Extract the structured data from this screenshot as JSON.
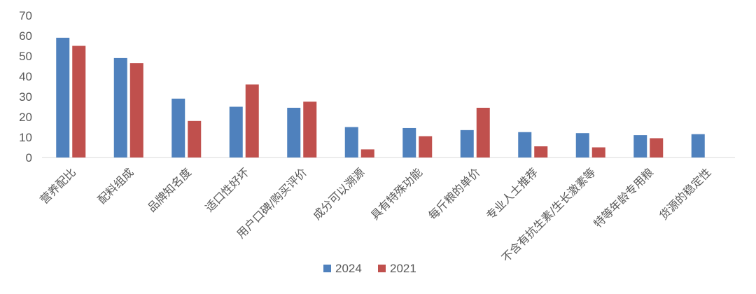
{
  "chart_data": {
    "type": "bar",
    "title": "",
    "xlabel": "",
    "ylabel": "",
    "ylim": [
      0,
      70
    ],
    "yticks": [
      0,
      10,
      20,
      30,
      40,
      50,
      60,
      70
    ],
    "grid": false,
    "legend_position": "bottom",
    "categories": [
      "营养配比",
      "配料组成",
      "品牌知名度",
      "适口性好坏",
      "用户口碑/购买评价",
      "成分可以溯源",
      "具有特殊功能",
      "每斤粮的单价",
      "专业人士推荐",
      "不含有抗生素/生长激素等",
      "特等年龄专用粮",
      "货源的稳定性"
    ],
    "series": [
      {
        "name": "2024",
        "color": "#4F81BD",
        "values": [
          59,
          49,
          29,
          25,
          24.5,
          15,
          14.5,
          13.5,
          12.5,
          12,
          11,
          11.5
        ]
      },
      {
        "name": "2021",
        "color": "#C0504D",
        "values": [
          55,
          46.5,
          18,
          36,
          27.5,
          4,
          10.5,
          24.5,
          5.5,
          5,
          9.5,
          null
        ]
      }
    ]
  }
}
